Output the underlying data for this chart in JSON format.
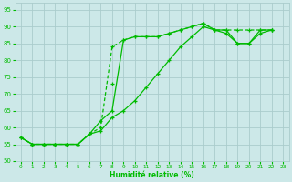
{
  "xlabel": "Humidité relative (%)",
  "bg_color": "#cce8e8",
  "grid_color": "#aacccc",
  "line_color": "#00bb00",
  "xlim": [
    -0.5,
    23.5
  ],
  "ylim": [
    50,
    97
  ],
  "xticks": [
    0,
    1,
    2,
    3,
    4,
    5,
    6,
    7,
    8,
    9,
    10,
    11,
    12,
    13,
    14,
    15,
    16,
    17,
    18,
    19,
    20,
    21,
    22,
    23
  ],
  "yticks": [
    50,
    55,
    60,
    65,
    70,
    75,
    80,
    85,
    90,
    95
  ],
  "series1": [
    57,
    55,
    55,
    55,
    55,
    55,
    58,
    60,
    84,
    86,
    87,
    87,
    87,
    88,
    89,
    90,
    91,
    89,
    89,
    89,
    89,
    89,
    89
  ],
  "series2": [
    57,
    55,
    55,
    55,
    55,
    55,
    58,
    62,
    65,
    86,
    87,
    87,
    87,
    88,
    89,
    90,
    91,
    89,
    89,
    85,
    85,
    89,
    89
  ],
  "series3_x": [
    8
  ],
  "series3_y": [
    73
  ],
  "series4": [
    57,
    55,
    55,
    55,
    55,
    55,
    58,
    59,
    63,
    65,
    68,
    72,
    76,
    80,
    84,
    87,
    90,
    89,
    88,
    85,
    85,
    88,
    89
  ]
}
